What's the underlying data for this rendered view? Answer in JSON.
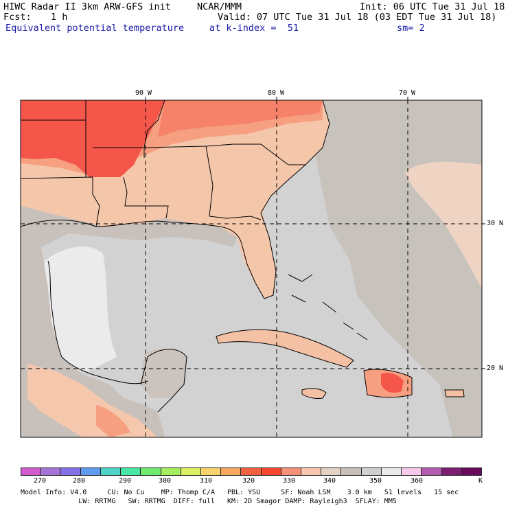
{
  "header": {
    "model_title": "HIWC Radar II 3km ARW-GFS init",
    "org": "NCAR/MMM",
    "init": "Init: 06 UTC Tue 31 Jul 18",
    "fcst_label": "Fcst:",
    "fcst_value": "1 h",
    "valid": "Valid: 07 UTC Tue 31 Jul 18 (03 EDT Tue 31 Jul 18)",
    "field": "Equivalent potential temperature",
    "level": "at k-index =  51",
    "smoothing": "sm= 2"
  },
  "map": {
    "lon_labels": [
      "90 W",
      "80 W",
      "70 W"
    ],
    "lat_labels": [
      "30 N",
      "20 N"
    ],
    "region": "Gulf of Mexico / Southeast US / Caribbean"
  },
  "colorbar": {
    "colors": [
      "#d35bd0",
      "#a673d6",
      "#8670e6",
      "#5f9bef",
      "#4fd2c8",
      "#48e6a4",
      "#6fea6f",
      "#a6ee5f",
      "#dcee61",
      "#f7d46c",
      "#f6a85e",
      "#f0613f",
      "#f7472f",
      "#f69079",
      "#f8c8ae",
      "#e3d2c4",
      "#c8bfba",
      "#d0d0d0",
      "#ebebeb",
      "#f7c9ea",
      "#b45aaf",
      "#7e1e72",
      "#6c0a5d"
    ],
    "tick_labels": [
      "270",
      "280",
      "290",
      "300",
      "310",
      "320",
      "330",
      "340",
      "350",
      "360",
      "K"
    ]
  },
  "footer": {
    "line1": "Model Info: V4.0     CU: No Cu    MP: Thomp C/A   PBL: YSU     SF: Noah LSM    3.0 km   51 levels   15 sec",
    "line2": "              LW: RRTMG   SW: RRTMG  DIFF: full   KM: 2D Smagor DAMP: Rayleigh3  SFLAY: MM5"
  }
}
